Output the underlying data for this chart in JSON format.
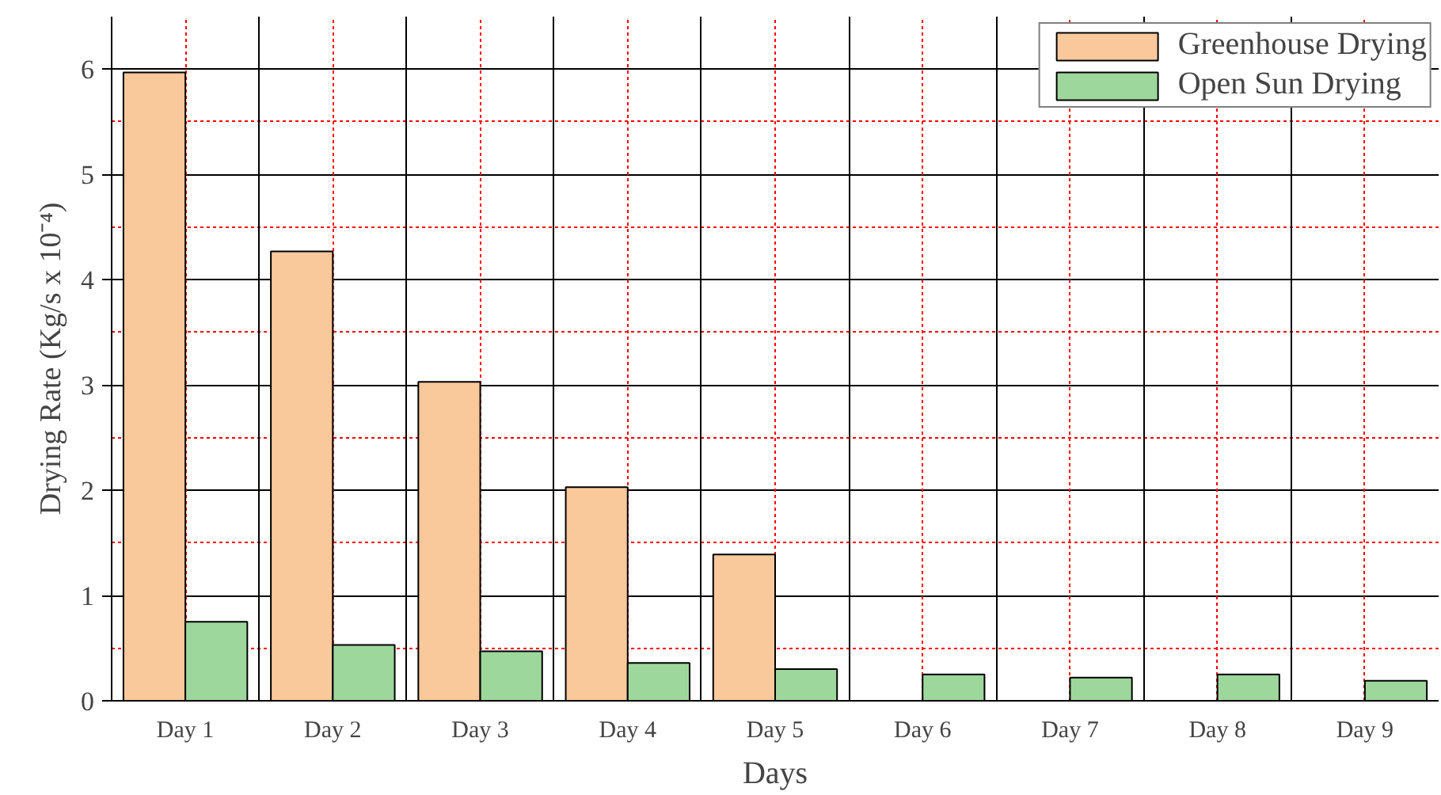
{
  "chart_data": {
    "type": "bar",
    "xlabel": "Days",
    "ylabel": "Drying Rate (Kg/s x 10⁻⁴)",
    "categories": [
      "Day 1",
      "Day 2",
      "Day 3",
      "Day 4",
      "Day 5",
      "Day 6",
      "Day 7",
      "Day 8",
      "Day 9"
    ],
    "series": [
      {
        "name": "Greenhouse Drying",
        "color": "#f9c89b",
        "values": [
          5.97,
          4.27,
          3.03,
          2.03,
          1.39,
          null,
          null,
          null,
          null
        ]
      },
      {
        "name": "Open Sun Drying",
        "color": "#9ed79b",
        "values": [
          0.75,
          0.53,
          0.47,
          0.36,
          0.3,
          0.25,
          0.22,
          0.25,
          0.19
        ]
      }
    ],
    "ylim": [
      0,
      6.5
    ],
    "yticks": [
      0,
      {
        "value": 0.5,
        "label": null
      },
      1,
      {
        "value": 1.5,
        "label": null
      },
      2,
      {
        "value": 2.5,
        "label": null
      },
      3,
      {
        "value": 3.5,
        "label": null
      },
      4,
      {
        "value": 4.5,
        "label": null
      },
      5,
      {
        "value": 5.5,
        "label": null
      },
      6
    ],
    "grid": true,
    "legend": "top right"
  }
}
